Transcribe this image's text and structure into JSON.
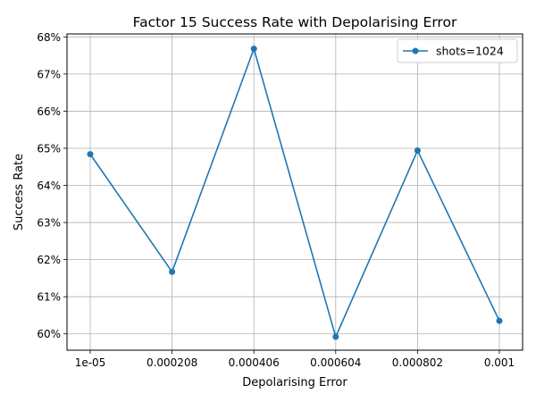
{
  "chart_data": {
    "type": "line",
    "title": "Factor 15 Success Rate with Depolarising Error",
    "xlabel": "Depolarising Error",
    "ylabel": "Success Rate",
    "x": [
      1e-05,
      0.000208,
      0.000406,
      0.000604,
      0.000802,
      0.001
    ],
    "x_tick_labels": [
      "1e-05",
      "0.000208",
      "0.000406",
      "0.000604",
      "0.000802",
      "0.001"
    ],
    "y_ticks": [
      0.6,
      0.61,
      0.62,
      0.63,
      0.64,
      0.65,
      0.66,
      0.67,
      0.68
    ],
    "y_tick_labels": [
      "60%",
      "61%",
      "62%",
      "63%",
      "64%",
      "65%",
      "66%",
      "67%",
      "68%"
    ],
    "ylim": [
      0.5956,
      0.6808
    ],
    "grid": true,
    "legend_position": "upper right",
    "series": [
      {
        "name": "shots=1024",
        "color": "#1f77b4",
        "marker": "circle",
        "values": [
          0.6484,
          0.6167,
          0.6768,
          0.5992,
          0.6494,
          0.6035
        ]
      }
    ]
  }
}
